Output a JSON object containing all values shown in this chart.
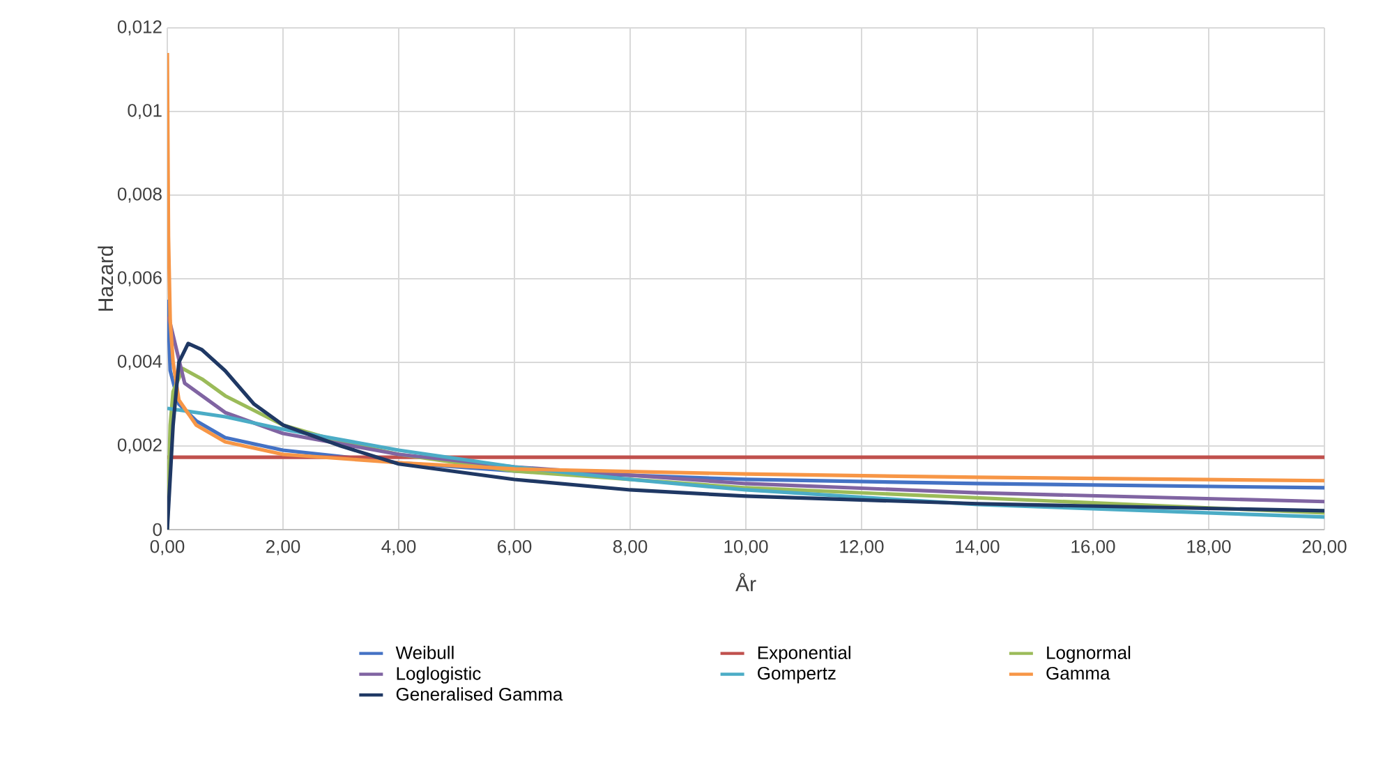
{
  "chart_data": {
    "type": "line",
    "xlabel": "År",
    "ylabel": "Hazard",
    "xlim": [
      0,
      20
    ],
    "ylim": [
      0,
      0.012
    ],
    "xticks": [
      {
        "value": 0,
        "label": "0,00"
      },
      {
        "value": 2,
        "label": "2,00"
      },
      {
        "value": 4,
        "label": "4,00"
      },
      {
        "value": 6,
        "label": "6,00"
      },
      {
        "value": 8,
        "label": "8,00"
      },
      {
        "value": 10,
        "label": "10,00"
      },
      {
        "value": 12,
        "label": "12,00"
      },
      {
        "value": 14,
        "label": "14,00"
      },
      {
        "value": 16,
        "label": "16,00"
      },
      {
        "value": 18,
        "label": "18,00"
      },
      {
        "value": 20,
        "label": "20,00"
      }
    ],
    "yticks": [
      0,
      {
        "value": 0.002,
        "label": "0,002"
      },
      {
        "value": 0.004,
        "label": "0,004"
      },
      {
        "value": 0.006,
        "label": "0,006"
      },
      {
        "value": 0.008,
        "label": "0,008"
      },
      {
        "value": 0.01,
        "label": "0,01"
      },
      {
        "value": 0.012,
        "label": "0,012"
      }
    ],
    "grid": true,
    "legend": "bottom",
    "marker": "none",
    "line_style": "solid",
    "series": [
      {
        "name": "Weibull",
        "color": "#4472c4",
        "x": [
          0.005,
          0.05,
          0.2,
          0.5,
          1,
          2,
          4,
          6,
          10,
          14,
          20
        ],
        "values": [
          0.0055,
          0.0038,
          0.003,
          0.0026,
          0.0022,
          0.0019,
          0.0016,
          0.0014,
          0.0012,
          0.0011,
          0.001
        ]
      },
      {
        "name": "Exponential",
        "color": "#c0504d",
        "x": [
          0,
          20
        ],
        "values": [
          0.00173,
          0.00173
        ]
      },
      {
        "name": "Lognormal",
        "color": "#9bbb59",
        "x": [
          0,
          0.05,
          0.1,
          0.27,
          0.6,
          1,
          2,
          3,
          4,
          6,
          10,
          20
        ],
        "values": [
          0,
          0.0025,
          0.0033,
          0.00385,
          0.0036,
          0.0032,
          0.0025,
          0.0021,
          0.0018,
          0.0014,
          0.001,
          0.0004
        ]
      },
      {
        "name": "Loglogistic",
        "color": "#8064a2",
        "x": [
          0.02,
          0.3,
          1,
          2,
          4,
          6,
          10,
          14,
          20
        ],
        "values": [
          0.0051,
          0.0035,
          0.0028,
          0.0023,
          0.0018,
          0.0015,
          0.0011,
          0.00088,
          0.00067
        ]
      },
      {
        "name": "Gompertz",
        "color": "#4bacc6",
        "x": [
          0,
          1,
          2,
          4,
          6,
          8,
          10,
          14,
          20
        ],
        "values": [
          0.0029,
          0.0027,
          0.0024,
          0.0019,
          0.0015,
          0.0012,
          0.00095,
          0.0006,
          0.0003
        ]
      },
      {
        "name": "Gamma",
        "color": "#f79646",
        "x": [
          0,
          0.02,
          0.05,
          0.1,
          0.2,
          0.5,
          1,
          2,
          4,
          6,
          10,
          14,
          20
        ],
        "values": [
          0.0114,
          0.007,
          0.005,
          0.004,
          0.0031,
          0.0025,
          0.0021,
          0.0018,
          0.0016,
          0.00145,
          0.00133,
          0.00125,
          0.00117
        ]
      },
      {
        "name": "Generalised Gamma",
        "color": "#1f3864",
        "x": [
          0,
          0.1,
          0.2,
          0.36,
          0.6,
          1,
          1.5,
          2,
          3,
          4,
          6,
          8,
          10,
          14,
          20
        ],
        "values": [
          0,
          0.0025,
          0.004,
          0.00445,
          0.0043,
          0.0038,
          0.003,
          0.0025,
          0.002,
          0.00157,
          0.0012,
          0.00095,
          0.0008,
          0.00062,
          0.00045
        ]
      }
    ]
  }
}
